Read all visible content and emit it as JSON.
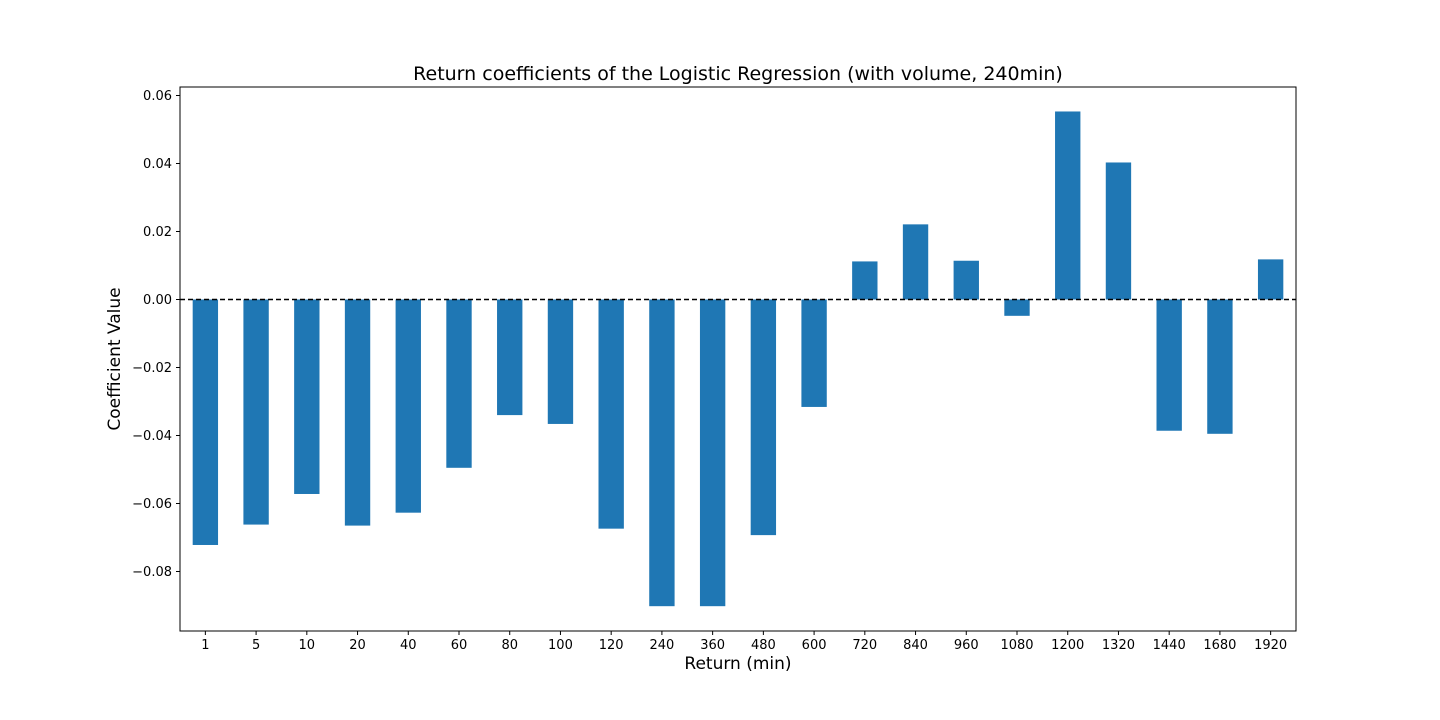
{
  "chart_data": {
    "type": "bar",
    "title": "Return coefficients of the Logistic Regression (with volume, 240min)",
    "xlabel": "Return (min)",
    "ylabel": "Coefficient Value",
    "categories": [
      "1",
      "5",
      "10",
      "20",
      "40",
      "60",
      "80",
      "100",
      "120",
      "240",
      "360",
      "480",
      "600",
      "720",
      "840",
      "960",
      "1080",
      "1200",
      "1320",
      "1440",
      "1680",
      "1920"
    ],
    "values": [
      -0.0722,
      -0.0662,
      -0.0572,
      -0.0665,
      -0.0627,
      -0.0495,
      -0.034,
      -0.0366,
      -0.0674,
      -0.0902,
      -0.0902,
      -0.0693,
      -0.0316,
      0.0112,
      0.0221,
      0.0114,
      -0.0048,
      0.0553,
      0.0403,
      -0.0386,
      -0.0395,
      0.0118
    ],
    "ylim": [
      -0.0975,
      0.0625
    ],
    "yticks": [
      0.06,
      0.04,
      0.02,
      0.0,
      -0.02,
      -0.04,
      -0.06,
      -0.08
    ],
    "ytick_labels": [
      "0.06",
      "0.04",
      "0.02",
      "0.00",
      "−0.02",
      "−0.04",
      "−0.06",
      "−0.08"
    ],
    "bar_color": "#1f77b4",
    "zero_line": {
      "value": 0,
      "style": "dashed",
      "color": "#000000"
    },
    "grid": false,
    "legend": "none"
  }
}
